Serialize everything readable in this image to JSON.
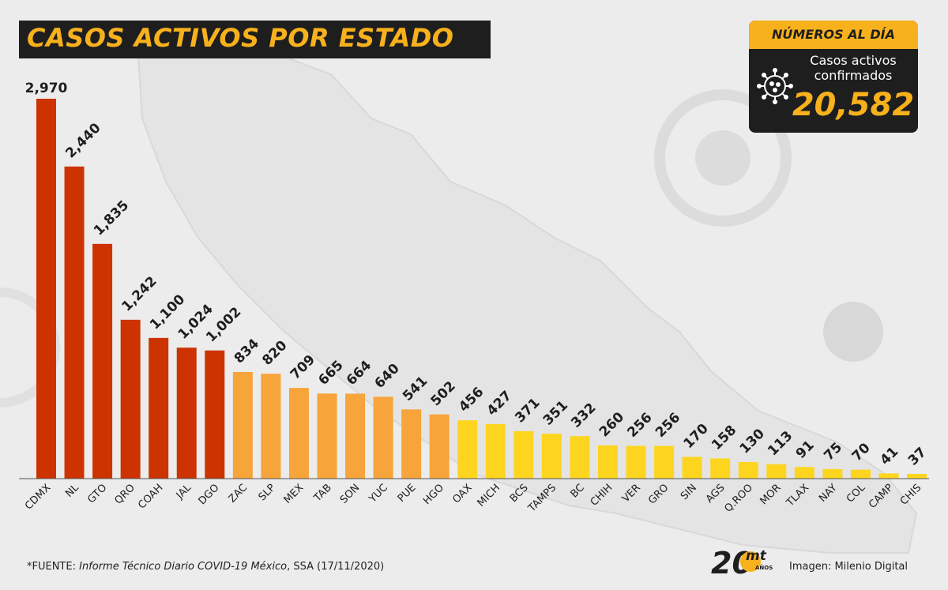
{
  "header": {
    "title": "CASOS ACTIVOS POR ESTADO"
  },
  "summary": {
    "heading": "NÚMEROS AL DÍA",
    "label_line1": "Casos activos",
    "label_line2": "confirmados",
    "value": "20,582",
    "icon": "virus-icon"
  },
  "footer": {
    "source_prefix": "*FUENTE: ",
    "source_title": "Informe Técnico Diario COVID-19 México",
    "source_suffix": ", SSA (17/11/2020)",
    "credit": "Imagen: Milenio Digital",
    "logo_number": "20",
    "logo_text": "mt",
    "logo_sub": "AÑOS"
  },
  "colors": {
    "red": "#cc3300",
    "orange": "#f7a43a",
    "yellow": "#fdd51f",
    "accent": "#f7b11d",
    "dark": "#1e1e1e"
  },
  "chart_data": {
    "type": "bar",
    "categories": [
      "CDMX",
      "NL",
      "GTO",
      "QRO",
      "COAH",
      "JAL",
      "DGO",
      "ZAC",
      "SLP",
      "MEX",
      "TAB",
      "SON",
      "YUC",
      "PUE",
      "HGO",
      "OAX",
      "MICH",
      "BCS",
      "TAMPS",
      "BC",
      "CHIH",
      "VER",
      "GRO",
      "SIN",
      "AGS",
      "Q.ROO",
      "MOR",
      "TLAX",
      "NAY",
      "COL",
      "CAMP",
      "CHIS"
    ],
    "values": [
      2970,
      2440,
      1835,
      1242,
      1100,
      1024,
      1002,
      834,
      820,
      709,
      665,
      664,
      640,
      541,
      502,
      456,
      427,
      371,
      351,
      332,
      260,
      256,
      256,
      170,
      158,
      130,
      113,
      91,
      75,
      70,
      41,
      37
    ],
    "value_labels": [
      "2,970",
      "2,440",
      "1,835",
      "1,242",
      "1,100",
      "1,024",
      "1,002",
      "834",
      "820",
      "709",
      "665",
      "664",
      "640",
      "541",
      "502",
      "456",
      "427",
      "371",
      "351",
      "332",
      "260",
      "256",
      "256",
      "170",
      "158",
      "130",
      "113",
      "91",
      "75",
      "70",
      "41",
      "37"
    ],
    "color_groups": [
      "red",
      "red",
      "red",
      "red",
      "red",
      "red",
      "red",
      "orange",
      "orange",
      "orange",
      "orange",
      "orange",
      "orange",
      "orange",
      "orange",
      "yellow",
      "yellow",
      "yellow",
      "yellow",
      "yellow",
      "yellow",
      "yellow",
      "yellow",
      "yellow",
      "yellow",
      "yellow",
      "yellow",
      "yellow",
      "yellow",
      "yellow",
      "yellow",
      "yellow"
    ],
    "title": "CASOS ACTIVOS POR ESTADO",
    "xlabel": "",
    "ylabel": "",
    "ylim": [
      0,
      2970
    ],
    "grid": false,
    "legend": "none"
  }
}
